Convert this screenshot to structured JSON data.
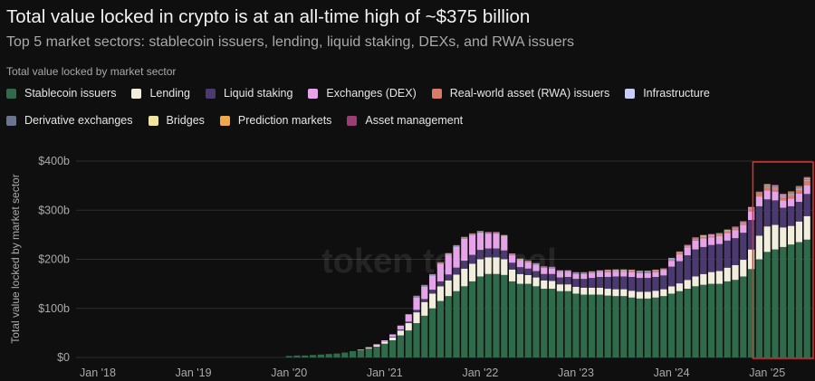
{
  "header": {
    "title": "Total value locked in crypto is at an all-time high of ~$375 billion",
    "subtitle": "Top 5 market sectors: stablecoin issuers, lending, liquid staking, DEXs, and RWA issuers"
  },
  "legend": {
    "title": "Total value locked by market sector",
    "rows": [
      [
        {
          "label": "Stablecoin issuers",
          "color": "#2f6b4a"
        },
        {
          "label": "Lending",
          "color": "#f1eedd"
        },
        {
          "label": "Liquid staking",
          "color": "#4a3a70"
        },
        {
          "label": "Exchanges (DEX)",
          "color": "#e6a3ea"
        },
        {
          "label": "Real-world asset (RWA) issuers",
          "color": "#d97b6a"
        },
        {
          "label": "Infrastructure",
          "color": "#c9cdf5"
        }
      ],
      [
        {
          "label": "Derivative exchanges",
          "color": "#6c7590"
        },
        {
          "label": "Bridges",
          "color": "#f2e5a0"
        },
        {
          "label": "Prediction markets",
          "color": "#f0a848"
        },
        {
          "label": "Asset management",
          "color": "#9a3e74"
        }
      ]
    ]
  },
  "watermark": "token terminal",
  "colors": {
    "background": "#0f0f0f",
    "grid": "#2e2e2e",
    "axis_text": "#a9a9a9",
    "highlight": "#e0302c"
  },
  "chart_data": {
    "type": "bar",
    "stacked": true,
    "ylabel": "Total value locked by market sector",
    "ylim": [
      0,
      400
    ],
    "yticks": [
      {
        "value": 0,
        "label": "$0"
      },
      {
        "value": 100,
        "label": "$100b"
      },
      {
        "value": 200,
        "label": "$200b"
      },
      {
        "value": 300,
        "label": "$300b"
      },
      {
        "value": 400,
        "label": "$400b"
      }
    ],
    "xticks": [
      {
        "month": "2018-01",
        "label": "Jan '18"
      },
      {
        "month": "2019-01",
        "label": "Jan '19"
      },
      {
        "month": "2020-01",
        "label": "Jan '20"
      },
      {
        "month": "2021-01",
        "label": "Jan '21"
      },
      {
        "month": "2022-01",
        "label": "Jan '22"
      },
      {
        "month": "2023-01",
        "label": "Jan '23"
      },
      {
        "month": "2024-01",
        "label": "Jan '24"
      },
      {
        "month": "2025-01",
        "label": "Jan '25"
      }
    ],
    "grid": true,
    "highlight": {
      "from": "2024-12",
      "to": "2025-06"
    },
    "months": [
      "2020-01",
      "2020-02",
      "2020-03",
      "2020-04",
      "2020-05",
      "2020-06",
      "2020-07",
      "2020-08",
      "2020-09",
      "2020-10",
      "2020-11",
      "2020-12",
      "2021-01",
      "2021-02",
      "2021-03",
      "2021-04",
      "2021-05",
      "2021-06",
      "2021-07",
      "2021-08",
      "2021-09",
      "2021-10",
      "2021-11",
      "2021-12",
      "2022-01",
      "2022-02",
      "2022-03",
      "2022-04",
      "2022-05",
      "2022-06",
      "2022-07",
      "2022-08",
      "2022-09",
      "2022-10",
      "2022-11",
      "2022-12",
      "2023-01",
      "2023-02",
      "2023-03",
      "2023-04",
      "2023-05",
      "2023-06",
      "2023-07",
      "2023-08",
      "2023-09",
      "2023-10",
      "2023-11",
      "2023-12",
      "2024-01",
      "2024-02",
      "2024-03",
      "2024-04",
      "2024-05",
      "2024-06",
      "2024-07",
      "2024-08",
      "2024-09",
      "2024-10",
      "2024-11",
      "2024-12",
      "2025-01",
      "2025-02",
      "2025-03",
      "2025-04",
      "2025-05",
      "2025-06"
    ],
    "series": [
      {
        "name": "Stablecoin issuers",
        "color": "#2f6b4a",
        "values": [
          3,
          4,
          4,
          5,
          6,
          7,
          8,
          10,
          13,
          15,
          18,
          22,
          28,
          35,
          45,
          55,
          70,
          85,
          100,
          115,
          125,
          135,
          145,
          155,
          165,
          170,
          170,
          168,
          155,
          150,
          150,
          145,
          140,
          140,
          135,
          135,
          130,
          128,
          128,
          128,
          126,
          125,
          125,
          122,
          120,
          120,
          122,
          125,
          130,
          135,
          140,
          145,
          148,
          150,
          150,
          155,
          158,
          165,
          180,
          200,
          215,
          220,
          225,
          230,
          235,
          240
        ]
      },
      {
        "name": "Lending",
        "color": "#f1eedd",
        "values": [
          0,
          0,
          0,
          0,
          0,
          0,
          0,
          0,
          0,
          1,
          2,
          3,
          4,
          6,
          10,
          15,
          22,
          28,
          30,
          30,
          32,
          34,
          36,
          36,
          35,
          34,
          34,
          32,
          24,
          20,
          18,
          18,
          17,
          16,
          14,
          14,
          14,
          14,
          14,
          14,
          14,
          14,
          14,
          14,
          14,
          14,
          14,
          14,
          15,
          16,
          18,
          20,
          22,
          24,
          26,
          28,
          30,
          34,
          40,
          48,
          52,
          50,
          40,
          38,
          42,
          48
        ]
      },
      {
        "name": "Liquid staking",
        "color": "#4a3a70",
        "values": [
          0,
          0,
          0,
          0,
          0,
          0,
          0,
          0,
          0,
          0,
          0,
          0,
          0,
          1,
          2,
          3,
          5,
          6,
          8,
          10,
          12,
          14,
          16,
          18,
          19,
          18,
          18,
          18,
          14,
          14,
          13,
          13,
          13,
          14,
          14,
          15,
          16,
          18,
          20,
          22,
          24,
          26,
          26,
          28,
          28,
          28,
          28,
          28,
          40,
          45,
          50,
          55,
          55,
          55,
          55,
          55,
          55,
          55,
          60,
          60,
          55,
          50,
          40,
          40,
          40,
          45
        ]
      },
      {
        "name": "Exchanges (DEX)",
        "color": "#e6a3ea",
        "values": [
          0,
          0,
          0,
          0,
          0,
          0,
          0,
          0,
          0,
          0,
          1,
          2,
          3,
          5,
          8,
          15,
          25,
          25,
          28,
          35,
          40,
          42,
          45,
          40,
          35,
          30,
          30,
          28,
          15,
          14,
          13,
          12,
          12,
          11,
          11,
          10,
          10,
          10,
          10,
          10,
          10,
          10,
          10,
          10,
          10,
          10,
          10,
          10,
          12,
          14,
          16,
          18,
          18,
          16,
          16,
          16,
          16,
          16,
          18,
          20,
          18,
          18,
          15,
          16,
          17,
          18
        ]
      },
      {
        "name": "Real-world asset (RWA) issuers",
        "color": "#d97b6a",
        "values": [
          0,
          0,
          0,
          0,
          0,
          0,
          0,
          0,
          0,
          0,
          0,
          0,
          0,
          0,
          0,
          0,
          0,
          0,
          0,
          0,
          0,
          0,
          0,
          0,
          0,
          0,
          0,
          0,
          0,
          0,
          0,
          0,
          0,
          0,
          0,
          0,
          0,
          0,
          0,
          0,
          1,
          1,
          1,
          1,
          1,
          1,
          1,
          1,
          2,
          2,
          2,
          3,
          3,
          3,
          3,
          3,
          4,
          4,
          5,
          6,
          6,
          6,
          6,
          7,
          8,
          9
        ]
      },
      {
        "name": "Infrastructure",
        "color": "#c9cdf5",
        "values": [
          0,
          0,
          0,
          0,
          0,
          0,
          0,
          0,
          0,
          0,
          0,
          0,
          0,
          0,
          0,
          0,
          1,
          1,
          1,
          1,
          1,
          1,
          1,
          1,
          1,
          1,
          1,
          1,
          1,
          1,
          1,
          1,
          1,
          1,
          1,
          1,
          1,
          1,
          1,
          1,
          1,
          1,
          1,
          1,
          1,
          1,
          1,
          1,
          1,
          1,
          1,
          1,
          1,
          1,
          1,
          1,
          1,
          1,
          1,
          1,
          2,
          2,
          2,
          2,
          2,
          2
        ]
      },
      {
        "name": "Derivative exchanges",
        "color": "#6c7590",
        "values": [
          0,
          0,
          0,
          0,
          0,
          0,
          0,
          0,
          0,
          0,
          0,
          0,
          0,
          0,
          0,
          0,
          1,
          1,
          1,
          1,
          1,
          1,
          1,
          1,
          1,
          1,
          1,
          1,
          1,
          1,
          1,
          1,
          1,
          1,
          1,
          1,
          1,
          1,
          1,
          1,
          1,
          1,
          1,
          1,
          1,
          1,
          1,
          1,
          1,
          1,
          1,
          1,
          1,
          1,
          1,
          1,
          1,
          1,
          1,
          1,
          2,
          2,
          2,
          2,
          2,
          2
        ]
      },
      {
        "name": "Bridges",
        "color": "#f2e5a0",
        "values": [
          0,
          0,
          0,
          0,
          0,
          0,
          0,
          0,
          0,
          0,
          0,
          0,
          0,
          0,
          0,
          0,
          1,
          1,
          1,
          1,
          1,
          1,
          1,
          1,
          1,
          1,
          1,
          1,
          1,
          1,
          1,
          1,
          1,
          1,
          1,
          1,
          1,
          1,
          1,
          1,
          1,
          1,
          1,
          1,
          1,
          1,
          1,
          1,
          1,
          1,
          1,
          1,
          1,
          1,
          1,
          1,
          1,
          1,
          1,
          1,
          1,
          1,
          1,
          1,
          1,
          1
        ]
      },
      {
        "name": "Prediction markets",
        "color": "#f0a848",
        "values": [
          0,
          0,
          0,
          0,
          0,
          0,
          0,
          0,
          0,
          0,
          0,
          0,
          0,
          0,
          0,
          0,
          0,
          0,
          0,
          0,
          0,
          0,
          0,
          0,
          0,
          0,
          0,
          0,
          0,
          0,
          0,
          0,
          0,
          0,
          0,
          0,
          0,
          0,
          0,
          0,
          0,
          0,
          0,
          0,
          0,
          0,
          0,
          0,
          0,
          0,
          0,
          0,
          0,
          0,
          0,
          0,
          0,
          0,
          0,
          0,
          1,
          1,
          1,
          1,
          1,
          1
        ]
      },
      {
        "name": "Asset management",
        "color": "#9a3e74",
        "values": [
          0,
          0,
          0,
          0,
          0,
          0,
          0,
          0,
          0,
          0,
          0,
          0,
          0,
          0,
          0,
          0,
          1,
          1,
          1,
          1,
          1,
          1,
          1,
          1,
          1,
          1,
          1,
          1,
          1,
          1,
          1,
          1,
          1,
          1,
          1,
          1,
          1,
          1,
          1,
          1,
          1,
          1,
          1,
          1,
          1,
          1,
          1,
          1,
          1,
          1,
          1,
          1,
          1,
          1,
          1,
          1,
          1,
          1,
          1,
          1,
          2,
          2,
          2,
          2,
          2,
          2
        ]
      }
    ]
  }
}
